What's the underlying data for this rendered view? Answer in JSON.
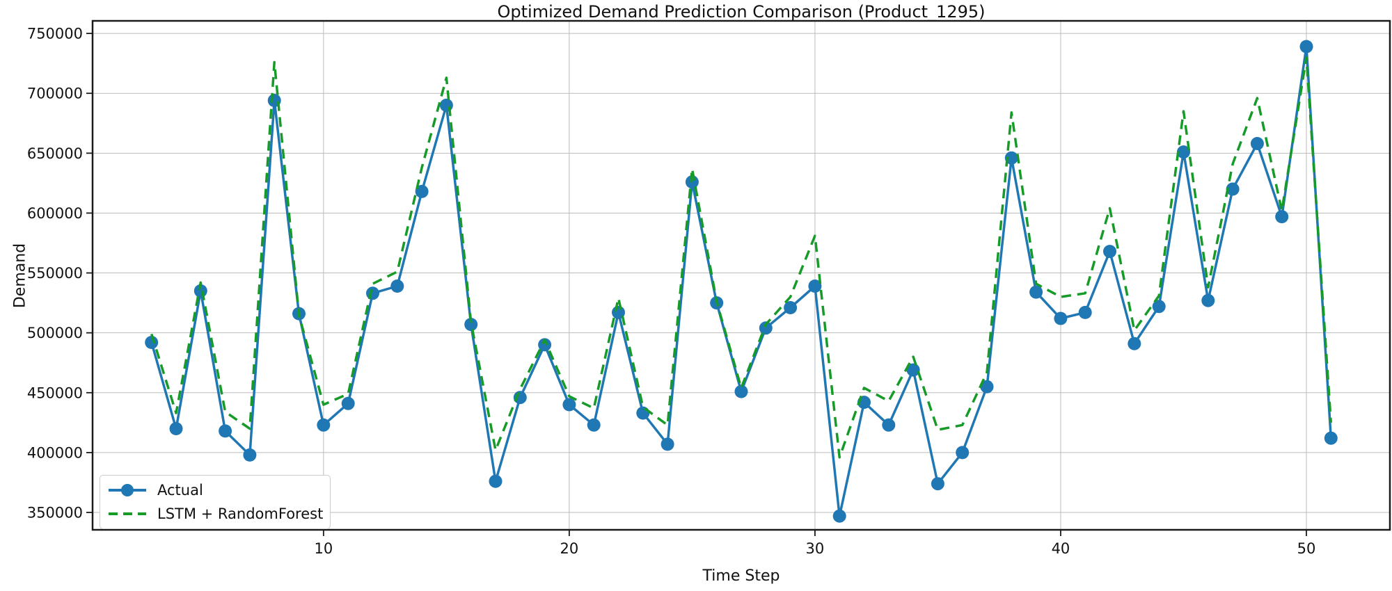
{
  "chart_data": {
    "type": "line",
    "title": "Optimized Demand Prediction Comparison (Product_1295)",
    "xlabel": "Time Step",
    "ylabel": "Demand",
    "xlim": [
      0.6,
      53.4
    ],
    "ylim": [
      335500,
      760500
    ],
    "xticks": [
      10,
      20,
      30,
      40,
      50
    ],
    "yticks": [
      350000,
      400000,
      450000,
      500000,
      550000,
      600000,
      650000,
      700000,
      750000
    ],
    "grid": true,
    "grid_color": "#bbbbbb",
    "spine_color": "#1a1a1a",
    "legend_position": "lower left",
    "x": [
      3,
      4,
      5,
      6,
      7,
      8,
      9,
      10,
      11,
      12,
      13,
      14,
      15,
      16,
      17,
      18,
      19,
      20,
      21,
      22,
      23,
      24,
      25,
      26,
      27,
      28,
      29,
      30,
      31,
      32,
      33,
      34,
      35,
      36,
      37,
      38,
      39,
      40,
      41,
      42,
      43,
      44,
      45,
      46,
      47,
      48,
      49,
      50,
      51
    ],
    "series": [
      {
        "name": "Actual",
        "color": "#1f77b4",
        "style": "solid",
        "marker": "circle",
        "values": [
          492000,
          420000,
          535000,
          418000,
          398000,
          694000,
          516000,
          423000,
          441000,
          533000,
          539000,
          618000,
          690000,
          507000,
          376000,
          446000,
          490000,
          440000,
          423000,
          517000,
          433000,
          407000,
          626000,
          525000,
          451000,
          504000,
          521000,
          539000,
          347000,
          442000,
          423000,
          469000,
          374000,
          400000,
          455000,
          646000,
          534000,
          512000,
          517000,
          568000,
          491000,
          522000,
          651000,
          527000,
          620000,
          658000,
          597000,
          739000,
          412000
        ]
      },
      {
        "name": "LSTM + RandomForest",
        "color": "#169b28",
        "style": "dashed",
        "marker": "none",
        "values": [
          499000,
          433000,
          542000,
          434000,
          420000,
          726000,
          515000,
          440000,
          449000,
          541000,
          551000,
          638000,
          713000,
          509000,
          402000,
          453000,
          494000,
          447000,
          437000,
          529000,
          438000,
          423000,
          637000,
          526000,
          454000,
          507000,
          530000,
          581000,
          396000,
          454000,
          443000,
          480000,
          419000,
          423000,
          467000,
          684000,
          541000,
          530000,
          533000,
          604000,
          502000,
          531000,
          685000,
          538000,
          641000,
          696000,
          602000,
          730000,
          425000
        ]
      }
    ]
  }
}
